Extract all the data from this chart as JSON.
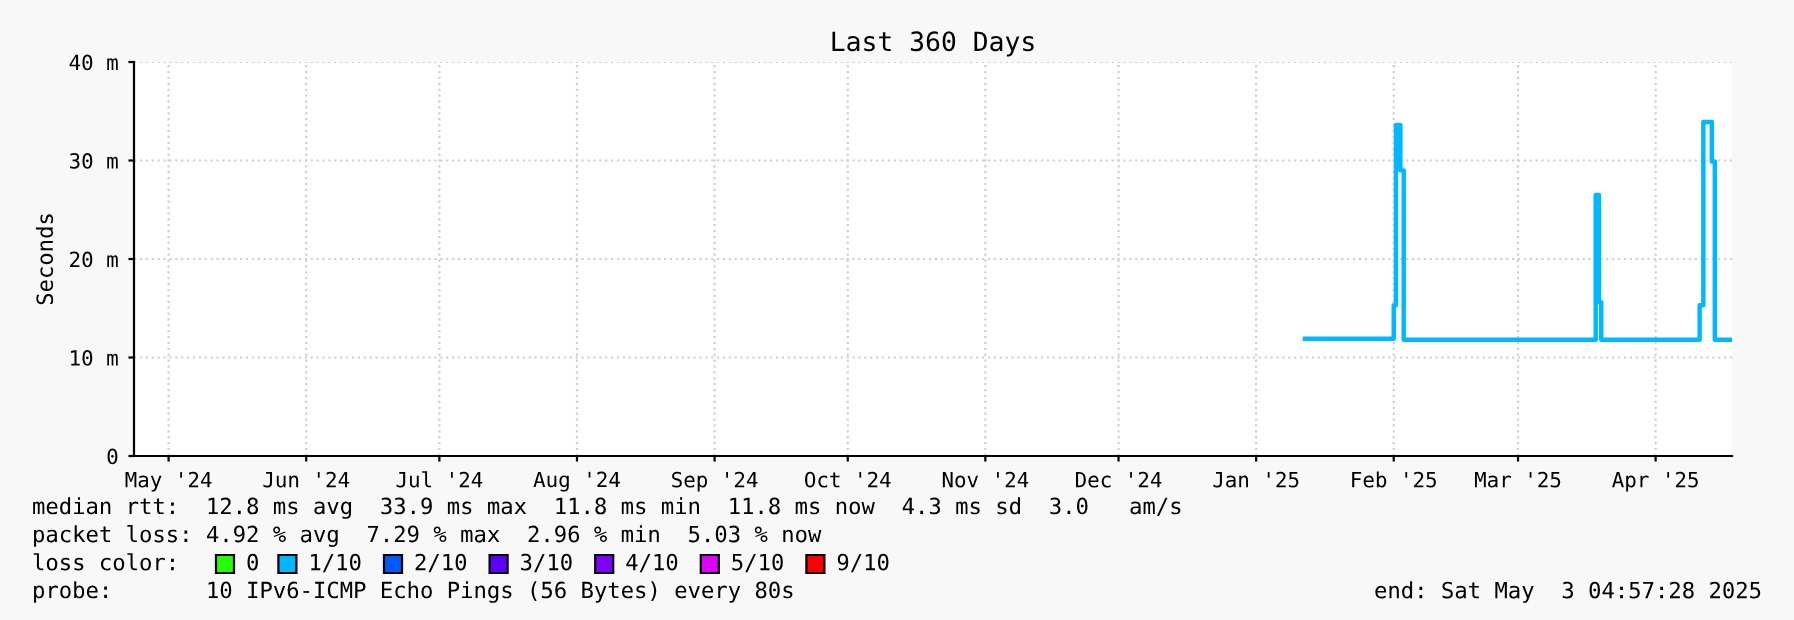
{
  "chart_data": {
    "type": "step",
    "title": "Last 360 Days",
    "ylabel": "Seconds",
    "legend_title": "loss color:",
    "x": [
      "2025-01-27T00:00",
      "2025-02-16T00:00",
      "2025-02-16T12:00",
      "2025-02-17T12:00",
      "2025-02-18T06:00",
      "2025-04-02T12:00",
      "2025-04-03T06:00",
      "2025-04-03T18:00",
      "2025-04-25T22:00",
      "2025-04-26T18:00",
      "2025-04-28T16:00",
      "2025-04-29T08:00",
      "2025-05-03T00:00"
    ],
    "series": [
      {
        "name": "0",
        "color": "#26ff00",
        "values": [
          null,
          null,
          null,
          null,
          null,
          null,
          null,
          null,
          null,
          null,
          null,
          null,
          null
        ]
      },
      {
        "name": "1/10",
        "color": "#00b8ff",
        "values": [
          11.9,
          15.3,
          33.6,
          29.0,
          11.8,
          26.5,
          15.6,
          11.8,
          15.3,
          33.9,
          29.9,
          11.8,
          11.8
        ]
      },
      {
        "name": "2/10",
        "color": "#0059ff",
        "values": [
          null,
          null,
          null,
          null,
          null,
          null,
          null,
          null,
          null,
          null,
          null,
          null,
          null
        ]
      },
      {
        "name": "3/10",
        "color": "#5e00ff",
        "values": [
          null,
          null,
          null,
          null,
          null,
          null,
          null,
          null,
          null,
          null,
          null,
          null,
          null
        ]
      },
      {
        "name": "4/10",
        "color": "#7e00ff",
        "values": [
          null,
          null,
          null,
          null,
          null,
          null,
          null,
          null,
          null,
          null,
          null,
          null,
          null
        ]
      },
      {
        "name": "5/10",
        "color": "#dd00ff",
        "values": [
          null,
          null,
          null,
          null,
          null,
          null,
          null,
          null,
          null,
          null,
          null,
          null,
          null
        ]
      },
      {
        "name": "9/10",
        "color": "#ff0000",
        "values": [
          null,
          null,
          null,
          null,
          null,
          null,
          null,
          null,
          null,
          null,
          null,
          null,
          null
        ]
      }
    ],
    "xlim": [
      "2024-05-08T04:57",
      "2025-05-03T04:57"
    ],
    "xticks": [
      {
        "value": "2024-05-16",
        "label": "May '24"
      },
      {
        "value": "2024-06-16",
        "label": "Jun '24"
      },
      {
        "value": "2024-07-16",
        "label": "Jul '24"
      },
      {
        "value": "2024-08-16",
        "label": "Aug '24"
      },
      {
        "value": "2024-09-16",
        "label": "Sep '24"
      },
      {
        "value": "2024-10-16",
        "label": "Oct '24"
      },
      {
        "value": "2024-11-16",
        "label": "Nov '24"
      },
      {
        "value": "2024-12-16",
        "label": "Dec '24"
      },
      {
        "value": "2025-01-16",
        "label": "Jan '25"
      },
      {
        "value": "2025-02-16",
        "label": "Feb '25"
      },
      {
        "value": "2025-03-16",
        "label": "Mar '25"
      },
      {
        "value": "2025-04-16",
        "label": "Apr '25"
      }
    ],
    "ylim": [
      0,
      40
    ],
    "yticks": [
      0,
      {
        "value": 10,
        "label": "10 m"
      },
      {
        "value": 20,
        "label": "20 m"
      },
      {
        "value": 30,
        "label": "30 m"
      },
      {
        "value": 40,
        "label": "40 m"
      }
    ],
    "grid": true,
    "legend": "bottom",
    "annotations": [
      "median rtt:  12.8 ms avg  33.9 ms max  11.8 ms min  11.8 ms now  4.3 ms sd  3.0   am/s",
      "packet loss: 4.92 % avg  7.29 % max  2.96 % min  5.03 % now",
      "probe:       10 IPv6-ICMP Echo Pings (56 Bytes) every 80s",
      "end: Sat May  3 04:57:28 2025"
    ]
  }
}
